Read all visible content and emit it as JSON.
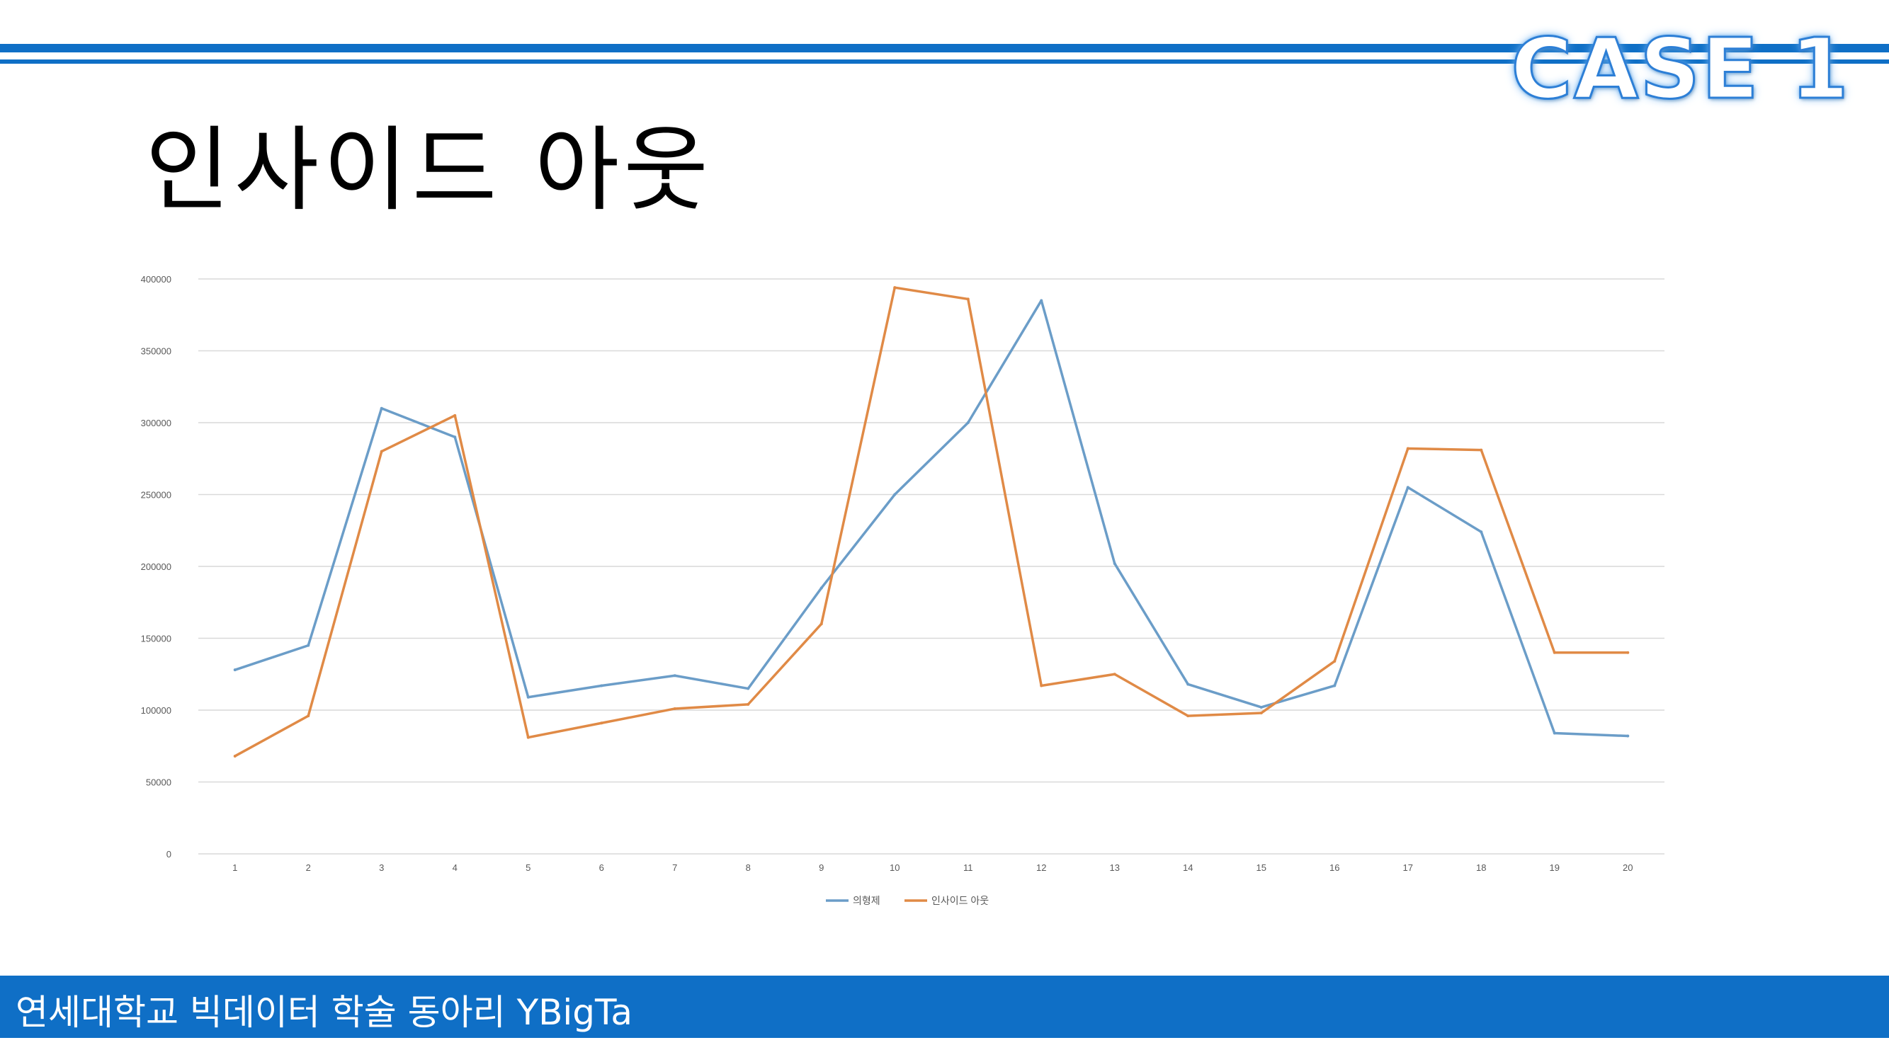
{
  "header": {
    "case_label": "CASE 1"
  },
  "page": {
    "title": "인사이드 아웃"
  },
  "footer": {
    "text": "연세대학교 빅데이터 학술 동아리 YBigTa"
  },
  "colors": {
    "accent_blue": "#0f6fc6",
    "series_blue": "#6b9dc8",
    "series_orange": "#e08a46",
    "grid": "#d9d9d9"
  },
  "chart_data": {
    "type": "line",
    "title": "",
    "xlabel": "",
    "ylabel": "",
    "x": [
      1,
      2,
      3,
      4,
      5,
      6,
      7,
      8,
      9,
      10,
      11,
      12,
      13,
      14,
      15,
      16,
      17,
      18,
      19,
      20
    ],
    "y_ticks": [
      0,
      50000,
      100000,
      150000,
      200000,
      250000,
      300000,
      350000,
      400000
    ],
    "ylim": [
      0,
      400000
    ],
    "grid": true,
    "legend_position": "bottom",
    "series": [
      {
        "name": "의형제",
        "color": "#6b9dc8",
        "values": [
          128000,
          145000,
          310000,
          290000,
          109000,
          117000,
          124000,
          115000,
          185000,
          250000,
          300000,
          385000,
          202000,
          118000,
          102000,
          117000,
          255000,
          224000,
          84000,
          82000
        ]
      },
      {
        "name": "인사이드 아웃",
        "color": "#e08a46",
        "values": [
          68000,
          96000,
          280000,
          305000,
          81000,
          91000,
          101000,
          104000,
          160000,
          394000,
          386000,
          117000,
          125000,
          96000,
          98000,
          134000,
          282000,
          281000,
          140000,
          140000
        ]
      }
    ]
  }
}
